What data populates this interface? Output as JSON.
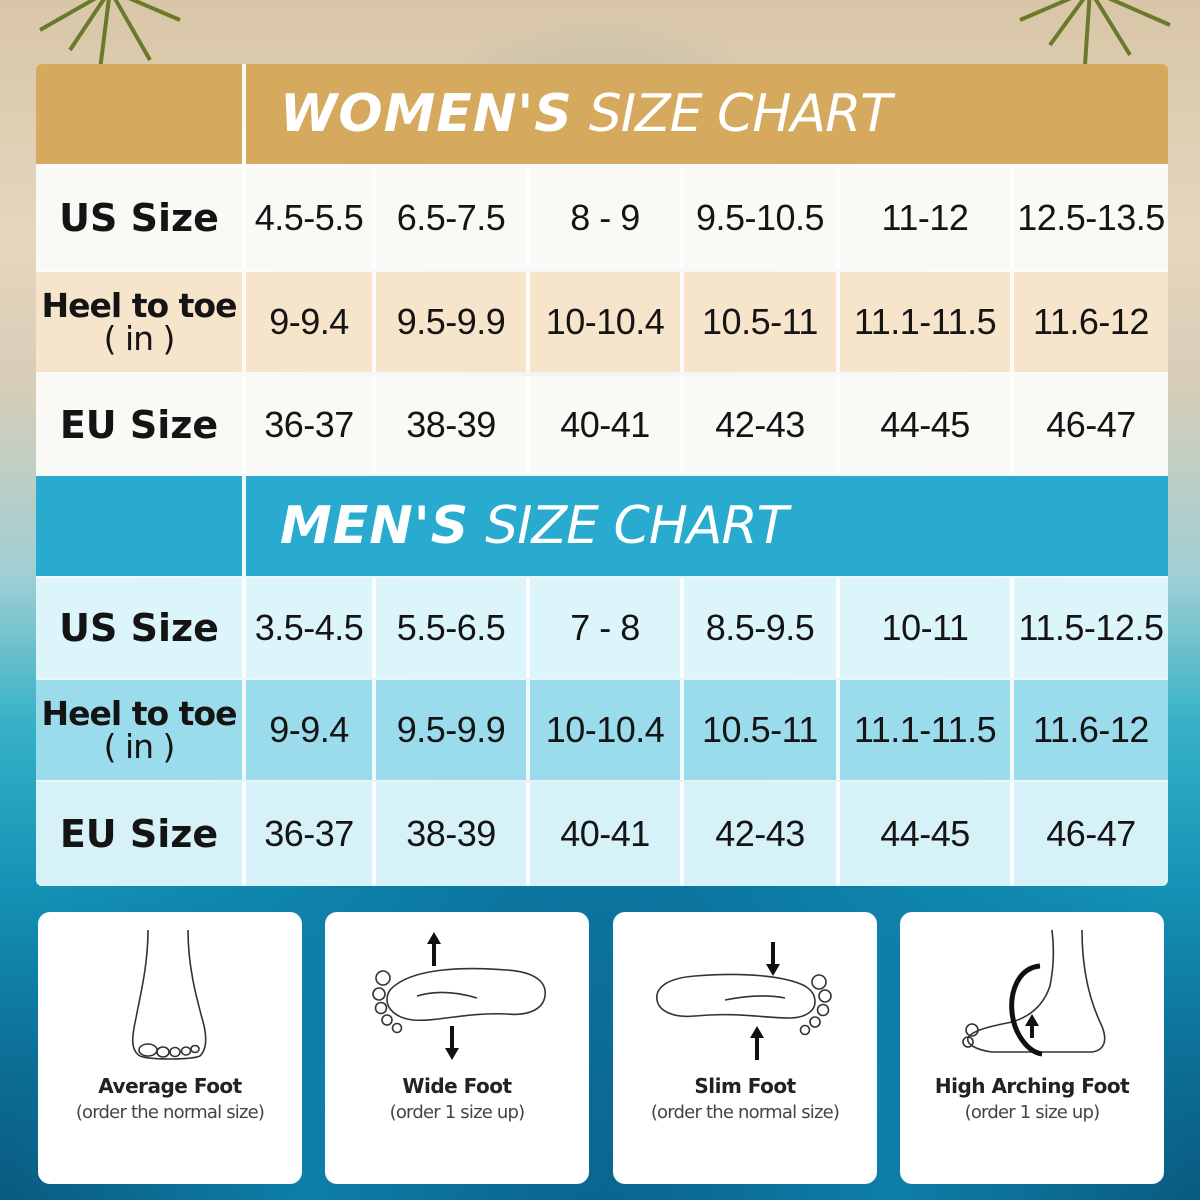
{
  "women": {
    "title_strong": "WOMEN'S",
    "title_light": "SIZE CHART",
    "rows": [
      {
        "label": "US Size",
        "values": [
          "4.5-5.5",
          "6.5-7.5",
          "8 - 9",
          "9.5-10.5",
          "11-12",
          "12.5-13.5"
        ]
      },
      {
        "label": "Heel to toe",
        "sub": "( in )",
        "values": [
          "9-9.4",
          "9.5-9.9",
          "10-10.4",
          "10.5-11",
          "11.1-11.5",
          "11.6-12"
        ]
      },
      {
        "label": "EU Size",
        "values": [
          "36-37",
          "38-39",
          "40-41",
          "42-43",
          "44-45",
          "46-47"
        ]
      }
    ]
  },
  "men": {
    "title_strong": "MEN'S",
    "title_light": "SIZE CHART",
    "rows": [
      {
        "label": "US Size",
        "values": [
          "3.5-4.5",
          "5.5-6.5",
          "7 - 8",
          "8.5-9.5",
          "10-11",
          "11.5-12.5"
        ]
      },
      {
        "label": "Heel to toe",
        "sub": "( in )",
        "values": [
          "9-9.4",
          "9.5-9.9",
          "10-10.4",
          "10.5-11",
          "11.1-11.5",
          "11.6-12"
        ]
      },
      {
        "label": "EU Size",
        "values": [
          "36-37",
          "38-39",
          "40-41",
          "42-43",
          "44-45",
          "46-47"
        ]
      }
    ]
  },
  "feet": [
    {
      "title": "Average Foot",
      "note": "(order the normal size)",
      "icon": "average-foot-icon"
    },
    {
      "title": "Wide Foot",
      "note": "(order 1 size up)",
      "icon": "wide-foot-icon"
    },
    {
      "title": "Slim Foot",
      "note": "(order the normal size)",
      "icon": "slim-foot-icon"
    },
    {
      "title": "High Arching Foot",
      "note": "(order 1 size up)",
      "icon": "high-arch-foot-icon"
    }
  ],
  "colors": {
    "women_header": "#d6aa5e",
    "men_header": "#29abd0"
  }
}
